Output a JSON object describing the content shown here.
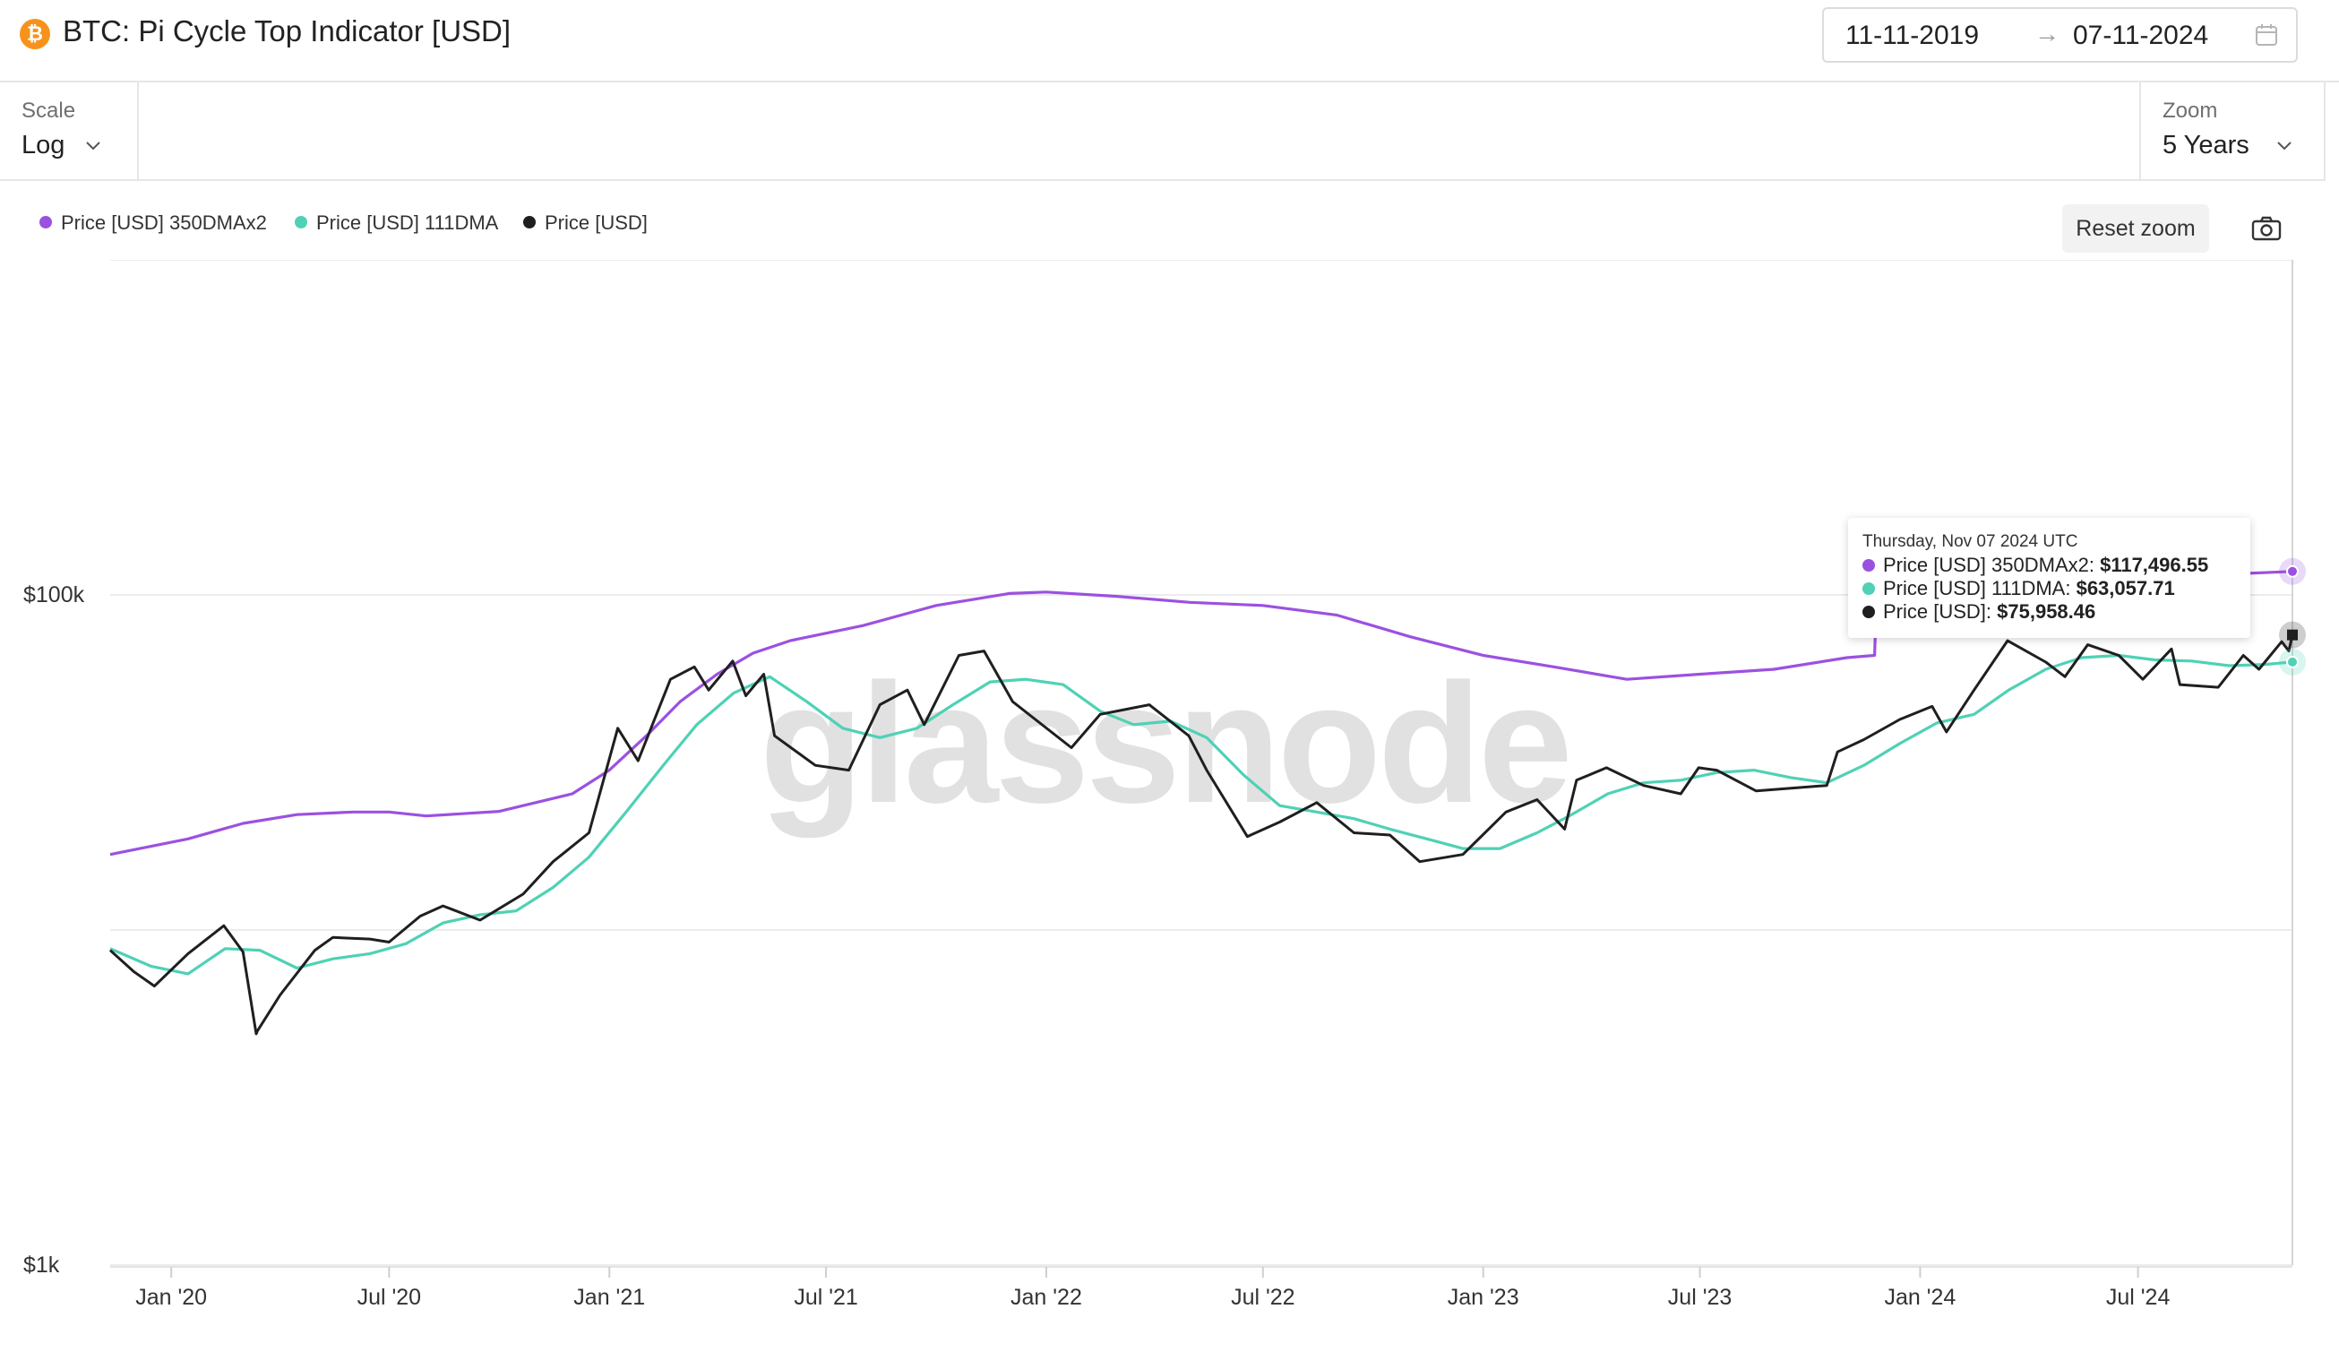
{
  "header": {
    "logo_glyph": "₿",
    "logo_icon": "bitcoin-icon",
    "title": "BTC: Pi Cycle Top Indicator [USD]",
    "date_start": "11-11-2019",
    "date_arrow": "→",
    "date_end": "07-11-2024",
    "calendar_icon": "calendar-icon"
  },
  "toolbar": {
    "scale_label": "Scale",
    "scale_value": "Log",
    "zoom_label": "Zoom",
    "zoom_value": "5 Years"
  },
  "actions": {
    "reset_zoom": "Reset zoom",
    "screenshot_icon": "camera-icon"
  },
  "watermark": "glassnode",
  "colors": {
    "ma350x2": "#9b51e0",
    "ma111": "#4fd1b5",
    "price": "#1f1f1f",
    "logo": "#f7931a"
  },
  "legend": [
    {
      "label": "Price [USD] 350DMAx2",
      "color": "#9b51e0"
    },
    {
      "label": "Price [USD] 111DMA",
      "color": "#4fd1b5"
    },
    {
      "label": "Price [USD]",
      "color": "#1f1f1f"
    }
  ],
  "tooltip": {
    "date": "Thursday, Nov 07 2024 UTC",
    "rows": [
      {
        "label": "Price [USD] 350DMAx2: ",
        "value": "$117,496.55",
        "color": "#9b51e0"
      },
      {
        "label": "Price [USD] 111DMA: ",
        "value": "$63,057.71",
        "color": "#4fd1b5"
      },
      {
        "label": "Price [USD]: ",
        "value": "$75,958.46",
        "color": "#1f1f1f"
      }
    ]
  },
  "chart_data": {
    "type": "line",
    "title": "BTC: Pi Cycle Top Indicator [USD]",
    "y_scale": "log",
    "ylim": [
      1000,
      1000000
    ],
    "xlim": [
      "2019-11-11",
      "2024-11-07"
    ],
    "y_tick_labels": [
      {
        "value": 100000,
        "label": "$100k"
      },
      {
        "value": 1000,
        "label": "$1k"
      }
    ],
    "x_tick_labels": [
      {
        "date": "2020-01-01",
        "label": "Jan '20"
      },
      {
        "date": "2020-07-01",
        "label": "Jul '20"
      },
      {
        "date": "2021-01-01",
        "label": "Jan '21"
      },
      {
        "date": "2021-07-01",
        "label": "Jul '21"
      },
      {
        "date": "2022-01-01",
        "label": "Jan '22"
      },
      {
        "date": "2022-07-01",
        "label": "Jul '22"
      },
      {
        "date": "2023-01-01",
        "label": "Jan '23"
      },
      {
        "date": "2023-07-01",
        "label": "Jul '23"
      },
      {
        "date": "2024-01-01",
        "label": "Jan '24"
      },
      {
        "date": "2024-07-01",
        "label": "Jul '24"
      }
    ],
    "grid": "horizontal",
    "legend_position": "top-left",
    "series": [
      {
        "name": "Price [USD] 350DMAx2",
        "color": "#9b51e0",
        "points": [
          [
            "2019-11-11",
            16800
          ],
          [
            "2020-01-15",
            18700
          ],
          [
            "2020-03-01",
            20800
          ],
          [
            "2020-04-15",
            22100
          ],
          [
            "2020-06-01",
            22500
          ],
          [
            "2020-07-01",
            22500
          ],
          [
            "2020-08-01",
            21900
          ],
          [
            "2020-10-01",
            22600
          ],
          [
            "2020-12-01",
            25500
          ],
          [
            "2021-01-01",
            30000
          ],
          [
            "2021-02-01",
            38000
          ],
          [
            "2021-03-01",
            48000
          ],
          [
            "2021-04-01",
            58000
          ],
          [
            "2021-05-01",
            67000
          ],
          [
            "2021-06-01",
            73000
          ],
          [
            "2021-08-01",
            81000
          ],
          [
            "2021-10-01",
            93000
          ],
          [
            "2021-12-01",
            101000
          ],
          [
            "2022-01-01",
            102000
          ],
          [
            "2022-03-01",
            99000
          ],
          [
            "2022-05-01",
            95000
          ],
          [
            "2022-07-01",
            93000
          ],
          [
            "2022-09-01",
            87000
          ],
          [
            "2022-11-01",
            75000
          ],
          [
            "2023-01-01",
            66000
          ],
          [
            "2023-03-01",
            61000
          ],
          [
            "2023-05-01",
            56000
          ],
          [
            "2023-07-01",
            58000
          ],
          [
            "2023-09-01",
            60000
          ],
          [
            "2023-11-01",
            65000
          ],
          [
            "2023-11-24",
            66000
          ],
          [
            "2023-11-25",
            86000
          ],
          [
            "2023-12-15",
            93000
          ],
          [
            "2024-02-01",
            98000
          ],
          [
            "2024-04-01",
            104000
          ],
          [
            "2024-06-01",
            109000
          ],
          [
            "2024-08-01",
            113000
          ],
          [
            "2024-10-01",
            116000
          ],
          [
            "2024-11-07",
            117496.55
          ]
        ]
      },
      {
        "name": "Price [USD] 111DMA",
        "color": "#4fd1b5",
        "points": [
          [
            "2019-11-11",
            8800
          ],
          [
            "2019-12-15",
            7800
          ],
          [
            "2020-01-15",
            7400
          ],
          [
            "2020-02-15",
            8800
          ],
          [
            "2020-03-15",
            8700
          ],
          [
            "2020-04-15",
            7700
          ],
          [
            "2020-05-15",
            8200
          ],
          [
            "2020-06-15",
            8500
          ],
          [
            "2020-07-15",
            9100
          ],
          [
            "2020-08-15",
            10500
          ],
          [
            "2020-09-15",
            11100
          ],
          [
            "2020-10-15",
            11400
          ],
          [
            "2020-11-15",
            13400
          ],
          [
            "2020-12-15",
            16500
          ],
          [
            "2021-01-15",
            22500
          ],
          [
            "2021-02-15",
            31000
          ],
          [
            "2021-03-15",
            41000
          ],
          [
            "2021-04-15",
            51000
          ],
          [
            "2021-05-15",
            57000
          ],
          [
            "2021-06-15",
            48000
          ],
          [
            "2021-07-15",
            40000
          ],
          [
            "2021-08-15",
            37500
          ],
          [
            "2021-09-15",
            40000
          ],
          [
            "2021-10-15",
            47000
          ],
          [
            "2021-11-15",
            55000
          ],
          [
            "2021-12-15",
            56000
          ],
          [
            "2022-01-15",
            54000
          ],
          [
            "2022-02-15",
            45000
          ],
          [
            "2022-03-15",
            41000
          ],
          [
            "2022-04-15",
            42000
          ],
          [
            "2022-05-15",
            37500
          ],
          [
            "2022-06-15",
            29000
          ],
          [
            "2022-07-15",
            23500
          ],
          [
            "2022-08-15",
            22500
          ],
          [
            "2022-09-15",
            21500
          ],
          [
            "2022-10-15",
            20000
          ],
          [
            "2022-11-15",
            18700
          ],
          [
            "2022-12-15",
            17500
          ],
          [
            "2023-01-15",
            17500
          ],
          [
            "2023-02-15",
            19500
          ],
          [
            "2023-03-15",
            22000
          ],
          [
            "2023-04-15",
            25500
          ],
          [
            "2023-05-15",
            27500
          ],
          [
            "2023-06-15",
            28000
          ],
          [
            "2023-07-15",
            29500
          ],
          [
            "2023-08-15",
            30000
          ],
          [
            "2023-09-15",
            28500
          ],
          [
            "2023-10-15",
            27500
          ],
          [
            "2023-11-15",
            31000
          ],
          [
            "2023-12-15",
            36000
          ],
          [
            "2024-01-15",
            41500
          ],
          [
            "2024-02-15",
            44000
          ],
          [
            "2024-03-15",
            52000
          ],
          [
            "2024-04-15",
            60000
          ],
          [
            "2024-05-15",
            65000
          ],
          [
            "2024-06-15",
            66000
          ],
          [
            "2024-07-15",
            64000
          ],
          [
            "2024-08-15",
            63500
          ],
          [
            "2024-09-15",
            61500
          ],
          [
            "2024-10-15",
            62000
          ],
          [
            "2024-11-07",
            63057.71
          ]
        ]
      },
      {
        "name": "Price [USD]",
        "color": "#1f1f1f",
        "points": [
          [
            "2019-11-11",
            8700
          ],
          [
            "2019-12-01",
            7500
          ],
          [
            "2019-12-18",
            6800
          ],
          [
            "2020-01-15",
            8500
          ],
          [
            "2020-02-14",
            10300
          ],
          [
            "2020-03-01",
            8600
          ],
          [
            "2020-03-12",
            4900
          ],
          [
            "2020-03-13",
            5000
          ],
          [
            "2020-04-01",
            6400
          ],
          [
            "2020-04-30",
            8700
          ],
          [
            "2020-05-15",
            9500
          ],
          [
            "2020-06-15",
            9400
          ],
          [
            "2020-07-01",
            9200
          ],
          [
            "2020-07-27",
            11000
          ],
          [
            "2020-08-15",
            11800
          ],
          [
            "2020-09-15",
            10700
          ],
          [
            "2020-10-21",
            12800
          ],
          [
            "2020-11-15",
            16000
          ],
          [
            "2020-12-15",
            19500
          ],
          [
            "2021-01-08",
            40000
          ],
          [
            "2021-01-25",
            32000
          ],
          [
            "2021-02-21",
            56000
          ],
          [
            "2021-03-13",
            61000
          ],
          [
            "2021-03-25",
            52000
          ],
          [
            "2021-04-14",
            63500
          ],
          [
            "2021-04-25",
            50000
          ],
          [
            "2021-05-10",
            58000
          ],
          [
            "2021-05-19",
            38000
          ],
          [
            "2021-06-22",
            31000
          ],
          [
            "2021-07-20",
            30000
          ],
          [
            "2021-08-15",
            47000
          ],
          [
            "2021-09-07",
            52000
          ],
          [
            "2021-09-21",
            41000
          ],
          [
            "2021-10-20",
            66000
          ],
          [
            "2021-11-10",
            68000
          ],
          [
            "2021-12-04",
            48000
          ],
          [
            "2022-01-22",
            35000
          ],
          [
            "2022-02-15",
            44000
          ],
          [
            "2022-03-28",
            47000
          ],
          [
            "2022-04-30",
            38000
          ],
          [
            "2022-05-15",
            30000
          ],
          [
            "2022-06-18",
            19000
          ],
          [
            "2022-07-15",
            21000
          ],
          [
            "2022-08-15",
            24000
          ],
          [
            "2022-09-15",
            19500
          ],
          [
            "2022-10-15",
            19200
          ],
          [
            "2022-11-09",
            16000
          ],
          [
            "2022-12-15",
            16800
          ],
          [
            "2023-01-20",
            22500
          ],
          [
            "2023-02-15",
            24500
          ],
          [
            "2023-03-10",
            20000
          ],
          [
            "2023-03-20",
            28000
          ],
          [
            "2023-04-14",
            30500
          ],
          [
            "2023-05-15",
            27000
          ],
          [
            "2023-06-15",
            25500
          ],
          [
            "2023-06-30",
            30500
          ],
          [
            "2023-07-15",
            30000
          ],
          [
            "2023-08-17",
            26000
          ],
          [
            "2023-09-15",
            26500
          ],
          [
            "2023-10-15",
            27000
          ],
          [
            "2023-10-24",
            34000
          ],
          [
            "2023-11-15",
            37000
          ],
          [
            "2023-12-15",
            42500
          ],
          [
            "2024-01-11",
            46500
          ],
          [
            "2024-01-23",
            39000
          ],
          [
            "2024-02-15",
            52000
          ],
          [
            "2024-03-14",
            73000
          ],
          [
            "2024-04-15",
            63000
          ],
          [
            "2024-05-01",
            57000
          ],
          [
            "2024-05-20",
            71000
          ],
          [
            "2024-06-15",
            66000
          ],
          [
            "2024-07-05",
            56000
          ],
          [
            "2024-07-29",
            69000
          ],
          [
            "2024-08-05",
            54000
          ],
          [
            "2024-09-06",
            53000
          ],
          [
            "2024-09-27",
            66000
          ],
          [
            "2024-10-10",
            60000
          ],
          [
            "2024-10-29",
            72500
          ],
          [
            "2024-11-04",
            68000
          ],
          [
            "2024-11-07",
            75958.46
          ]
        ]
      }
    ]
  }
}
